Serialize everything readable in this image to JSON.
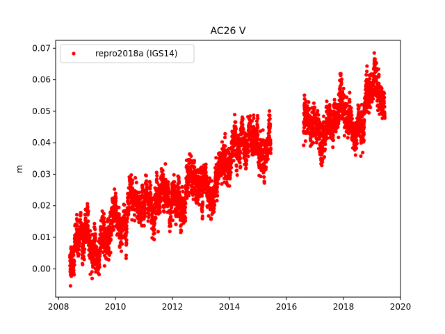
{
  "chart_data": {
    "type": "scatter",
    "title": "AC26 V",
    "xlabel": "",
    "ylabel": "m",
    "xlim": [
      2007.9,
      2020.0
    ],
    "ylim": [
      -0.009,
      0.0725
    ],
    "xticks": [
      2008,
      2010,
      2012,
      2014,
      2016,
      2018,
      2020
    ],
    "yticks": [
      0.0,
      0.01,
      0.02,
      0.03,
      0.04,
      0.05,
      0.06,
      0.07
    ],
    "ytick_labels": [
      "0.00",
      "0.01",
      "0.02",
      "0.03",
      "0.04",
      "0.05",
      "0.06",
      "0.07"
    ],
    "grid": false,
    "legend_position": "top-left",
    "series": [
      {
        "name": "repro2018a (IGS14)",
        "color": "#ff0000",
        "segments": [
          {
            "x": [
              2008.4,
              2008.6,
              2008.8,
              2009.0,
              2009.2,
              2009.4,
              2009.6,
              2009.8,
              2010.0,
              2010.2,
              2010.4,
              2010.6,
              2010.8,
              2011.0,
              2011.2,
              2011.4,
              2011.6,
              2011.8,
              2012.0,
              2012.2,
              2012.4,
              2012.6,
              2012.8,
              2013.0,
              2013.2,
              2013.4,
              2013.6,
              2013.8,
              2014.0,
              2014.2,
              2014.4,
              2014.6,
              2014.8,
              2015.0,
              2015.2,
              2015.45
            ],
            "y": [
              0.002,
              0.008,
              0.01,
              0.012,
              0.006,
              0.004,
              0.012,
              0.014,
              0.015,
              0.014,
              0.016,
              0.019,
              0.02,
              0.022,
              0.021,
              0.023,
              0.024,
              0.022,
              0.02,
              0.022,
              0.019,
              0.024,
              0.028,
              0.026,
              0.029,
              0.024,
              0.03,
              0.033,
              0.034,
              0.038,
              0.036,
              0.037,
              0.041,
              0.04,
              0.038,
              0.039
            ]
          },
          {
            "x": [
              2016.6,
              2016.8,
              2017.0,
              2017.2,
              2017.4,
              2017.6,
              2017.8,
              2018.0,
              2018.2,
              2018.4,
              2018.6,
              2018.8,
              2019.0,
              2019.2,
              2019.45
            ],
            "y": [
              0.043,
              0.047,
              0.046,
              0.044,
              0.047,
              0.044,
              0.049,
              0.052,
              0.047,
              0.04,
              0.046,
              0.054,
              0.057,
              0.057,
              0.052
            ]
          }
        ]
      }
    ]
  }
}
